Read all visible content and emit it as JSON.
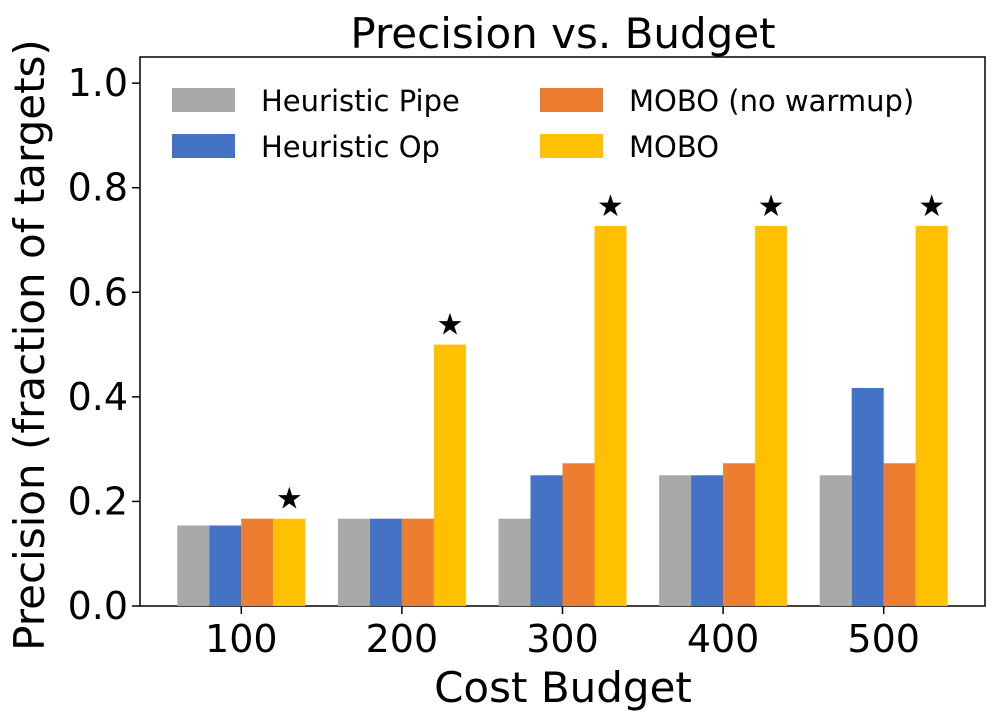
{
  "chart_data": {
    "type": "bar",
    "title": "Precision vs. Budget",
    "xlabel": "Cost Budget",
    "ylabel": "Precision (fraction of targets)",
    "ylim": [
      0,
      1.05
    ],
    "yticks": [
      0.0,
      0.2,
      0.4,
      0.6,
      0.8,
      1.0
    ],
    "ytick_labels": [
      "0.0",
      "0.2",
      "0.4",
      "0.6",
      "0.8",
      "1.0"
    ],
    "categories": [
      "100",
      "200",
      "300",
      "400",
      "500"
    ],
    "series": [
      {
        "name": "Heuristic Pipe",
        "color": "#a9a9a9",
        "values": [
          0.154,
          0.167,
          0.167,
          0.25,
          0.25
        ]
      },
      {
        "name": "Heuristic Op",
        "color": "#4472c4",
        "values": [
          0.154,
          0.167,
          0.25,
          0.25,
          0.417
        ]
      },
      {
        "name": "MOBO (no warmup)",
        "color": "#ed7d31",
        "values": [
          0.167,
          0.167,
          0.273,
          0.273,
          0.273
        ]
      },
      {
        "name": "MOBO",
        "color": "#ffc000",
        "values": [
          0.167,
          0.5,
          0.727,
          0.727,
          0.727
        ]
      }
    ],
    "annotations": {
      "marker": "★",
      "series": "MOBO",
      "note": "star above best bar in each group"
    },
    "legend": {
      "location": "top-left",
      "columns": 2
    }
  }
}
